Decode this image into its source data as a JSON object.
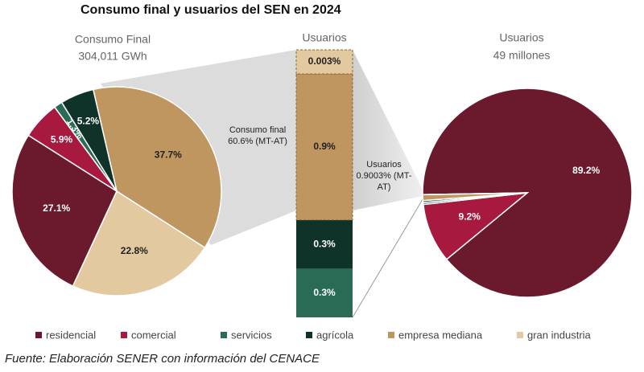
{
  "title": "Consumo final y usuarios del SEN en 2024",
  "source": "Fuente: Elaboración SENER con información del CENACE",
  "chart_data": [
    {
      "type": "pie",
      "title": "Consumo Final",
      "subtitle": "304,011 GWh",
      "categories": [
        "residencial",
        "comercial",
        "servicios",
        "agrícola",
        "empresa mediana",
        "gran industria"
      ],
      "colors": [
        "#6b1a2e",
        "#a8193f",
        "#2a6b56",
        "#0f3328",
        "#bf9660",
        "#e2c9a0"
      ],
      "values": [
        27.1,
        5.9,
        1.3,
        5.2,
        37.7,
        22.8
      ],
      "value_labels": [
        "27.1%",
        "5.9%",
        "1.3%",
        "5.2%",
        "37.7%",
        "22.8%"
      ],
      "annotation": "Consumo final 60.6% (MT-AT)"
    },
    {
      "type": "stacked-column",
      "title": "Usuarios",
      "categories": [
        "servicios",
        "agrícola",
        "empresa mediana",
        "gran industria"
      ],
      "colors": [
        "#2a6b56",
        "#0f3328",
        "#bf9660",
        "#e2c9a0"
      ],
      "values": [
        0.3,
        0.3,
        0.9,
        0.003
      ],
      "value_labels": [
        "0.3%",
        "0.3%",
        "0.9%",
        "0.003%"
      ],
      "annotation": "Usuarios 0.9003% (MT-AT)"
    },
    {
      "type": "pie",
      "title": "Usuarios",
      "subtitle": "49 millones",
      "colors": [
        "#6b1a2e",
        "#a8193f",
        "#2a6b56",
        "#0f3328",
        "#bf9660",
        "#e2c9a0"
      ],
      "values": [
        89.2,
        9.2,
        0.3,
        0.3,
        0.9,
        0.003
      ],
      "value_labels": [
        "89.2%",
        "9.2%",
        null,
        null,
        null,
        null
      ]
    }
  ]
}
